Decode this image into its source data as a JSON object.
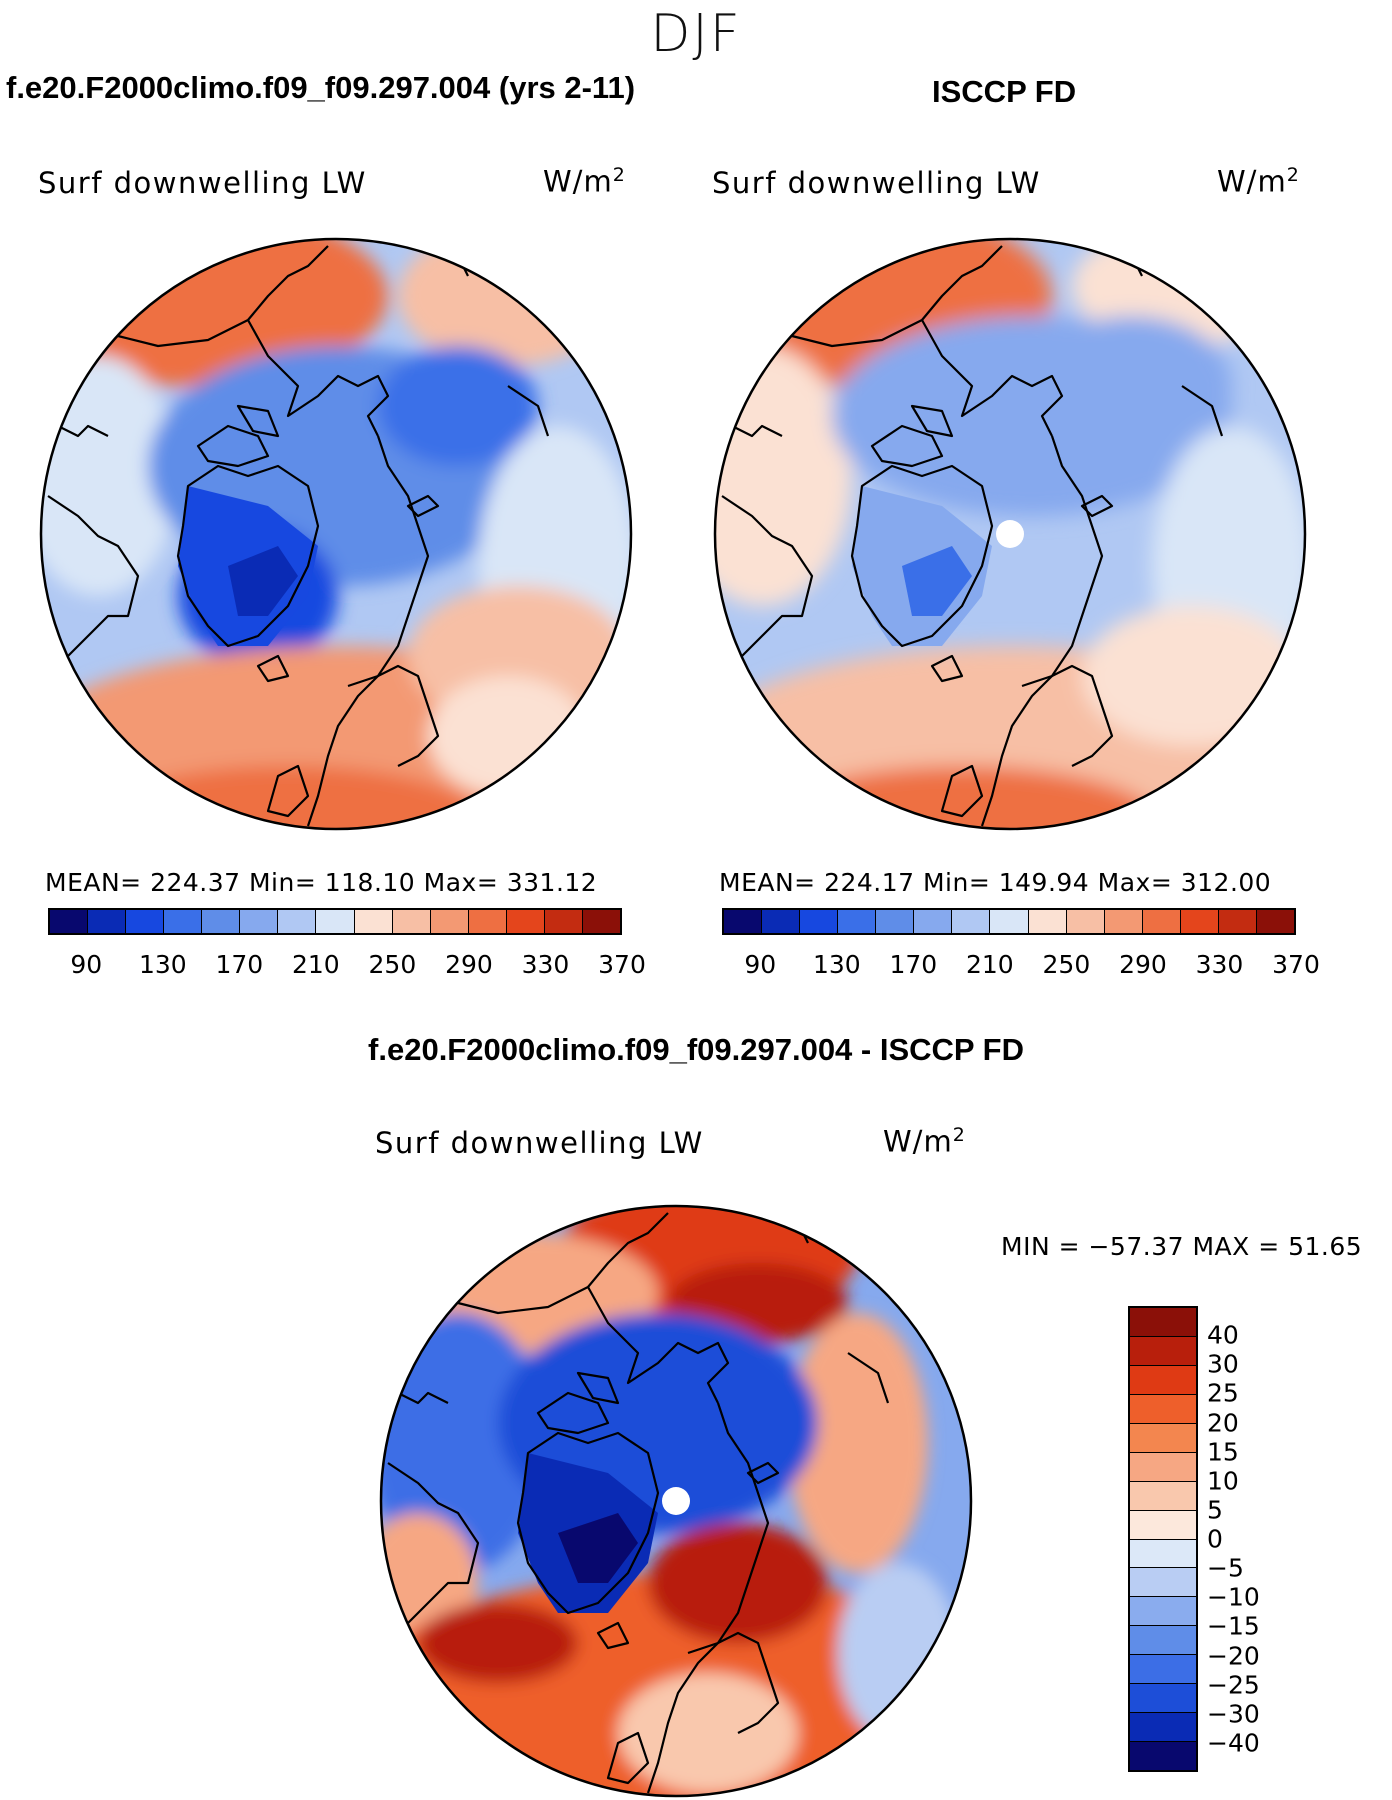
{
  "figure": {
    "season": "DJF",
    "model_title": "f.e20.F2000climo.f09_f09.297.004 (yrs 2-11)",
    "obs_title": "ISCCP FD",
    "diff_title": "f.e20.F2000climo.f09_f09.297.004 - ISCCP FD"
  },
  "panels": {
    "model": {
      "variable": "Surf downwelling LW",
      "units_base": "W/m",
      "units_exp": "2",
      "stats": "MEAN= 224.37   Min= 118.10   Max= 331.12"
    },
    "obs": {
      "variable": "Surf downwelling LW",
      "units_base": "W/m",
      "units_exp": "2",
      "stats": "MEAN= 224.17   Min= 149.94   Max= 312.00"
    },
    "diff": {
      "variable": "Surf downwelling LW",
      "units_base": "W/m",
      "units_exp": "2",
      "minmax": "MIN = −57.37 MAX =   51.65"
    }
  },
  "abs_colorbar": {
    "colors": [
      "#08086e",
      "#0a2bb5",
      "#1748e0",
      "#3a6fe8",
      "#5f8de8",
      "#86a9ee",
      "#b0c8f3",
      "#d9e6f7",
      "#fbe1d3",
      "#f7bfa5",
      "#f39973",
      "#ee6f42",
      "#e4451c",
      "#c32c11",
      "#8b1008"
    ],
    "labels": [
      "90",
      "130",
      "170",
      "210",
      "250",
      "290",
      "330",
      "370"
    ]
  },
  "diff_colorbar": {
    "colors": [
      "#8b1008",
      "#b81f0c",
      "#df3a14",
      "#ee5f2b",
      "#f3864f",
      "#f6a783",
      "#f9c8ad",
      "#fce8dc",
      "#dce8f8",
      "#b9cdf3",
      "#8aacee",
      "#5f8de8",
      "#3c6ee6",
      "#1d4ed8",
      "#0a2bb5",
      "#08086e"
    ],
    "labels": [
      "40",
      "30",
      "25",
      "20",
      "15",
      "10",
      "5",
      "0",
      "−5",
      "−10",
      "−15",
      "−20",
      "−25",
      "−30",
      "−40"
    ]
  },
  "chart_data": [
    {
      "type": "heatmap",
      "title": "f.e20.F2000climo.f09_f09.297.004 (yrs 2-11)",
      "projection": "north polar stereographic",
      "variable": "Surf downwelling LW",
      "units": "W/m^2",
      "mean": 224.37,
      "min": 118.1,
      "max": 331.12,
      "contour_levels": [
        90,
        110,
        130,
        150,
        170,
        190,
        210,
        230,
        250,
        270,
        290,
        310,
        330,
        350,
        370
      ]
    },
    {
      "type": "heatmap",
      "title": "ISCCP FD",
      "projection": "north polar stereographic",
      "variable": "Surf downwelling LW",
      "units": "W/m^2",
      "mean": 224.17,
      "min": 149.94,
      "max": 312.0,
      "contour_levels": [
        90,
        110,
        130,
        150,
        170,
        190,
        210,
        230,
        250,
        270,
        290,
        310,
        330,
        350,
        370
      ]
    },
    {
      "type": "heatmap",
      "title": "f.e20.F2000climo.f09_f09.297.004 - ISCCP FD",
      "projection": "north polar stereographic",
      "variable": "Surf downwelling LW",
      "units": "W/m^2",
      "min": -57.37,
      "max": 51.65,
      "contour_levels": [
        -40,
        -30,
        -25,
        -20,
        -15,
        -10,
        -5,
        0,
        5,
        10,
        15,
        20,
        25,
        30,
        40
      ]
    }
  ]
}
